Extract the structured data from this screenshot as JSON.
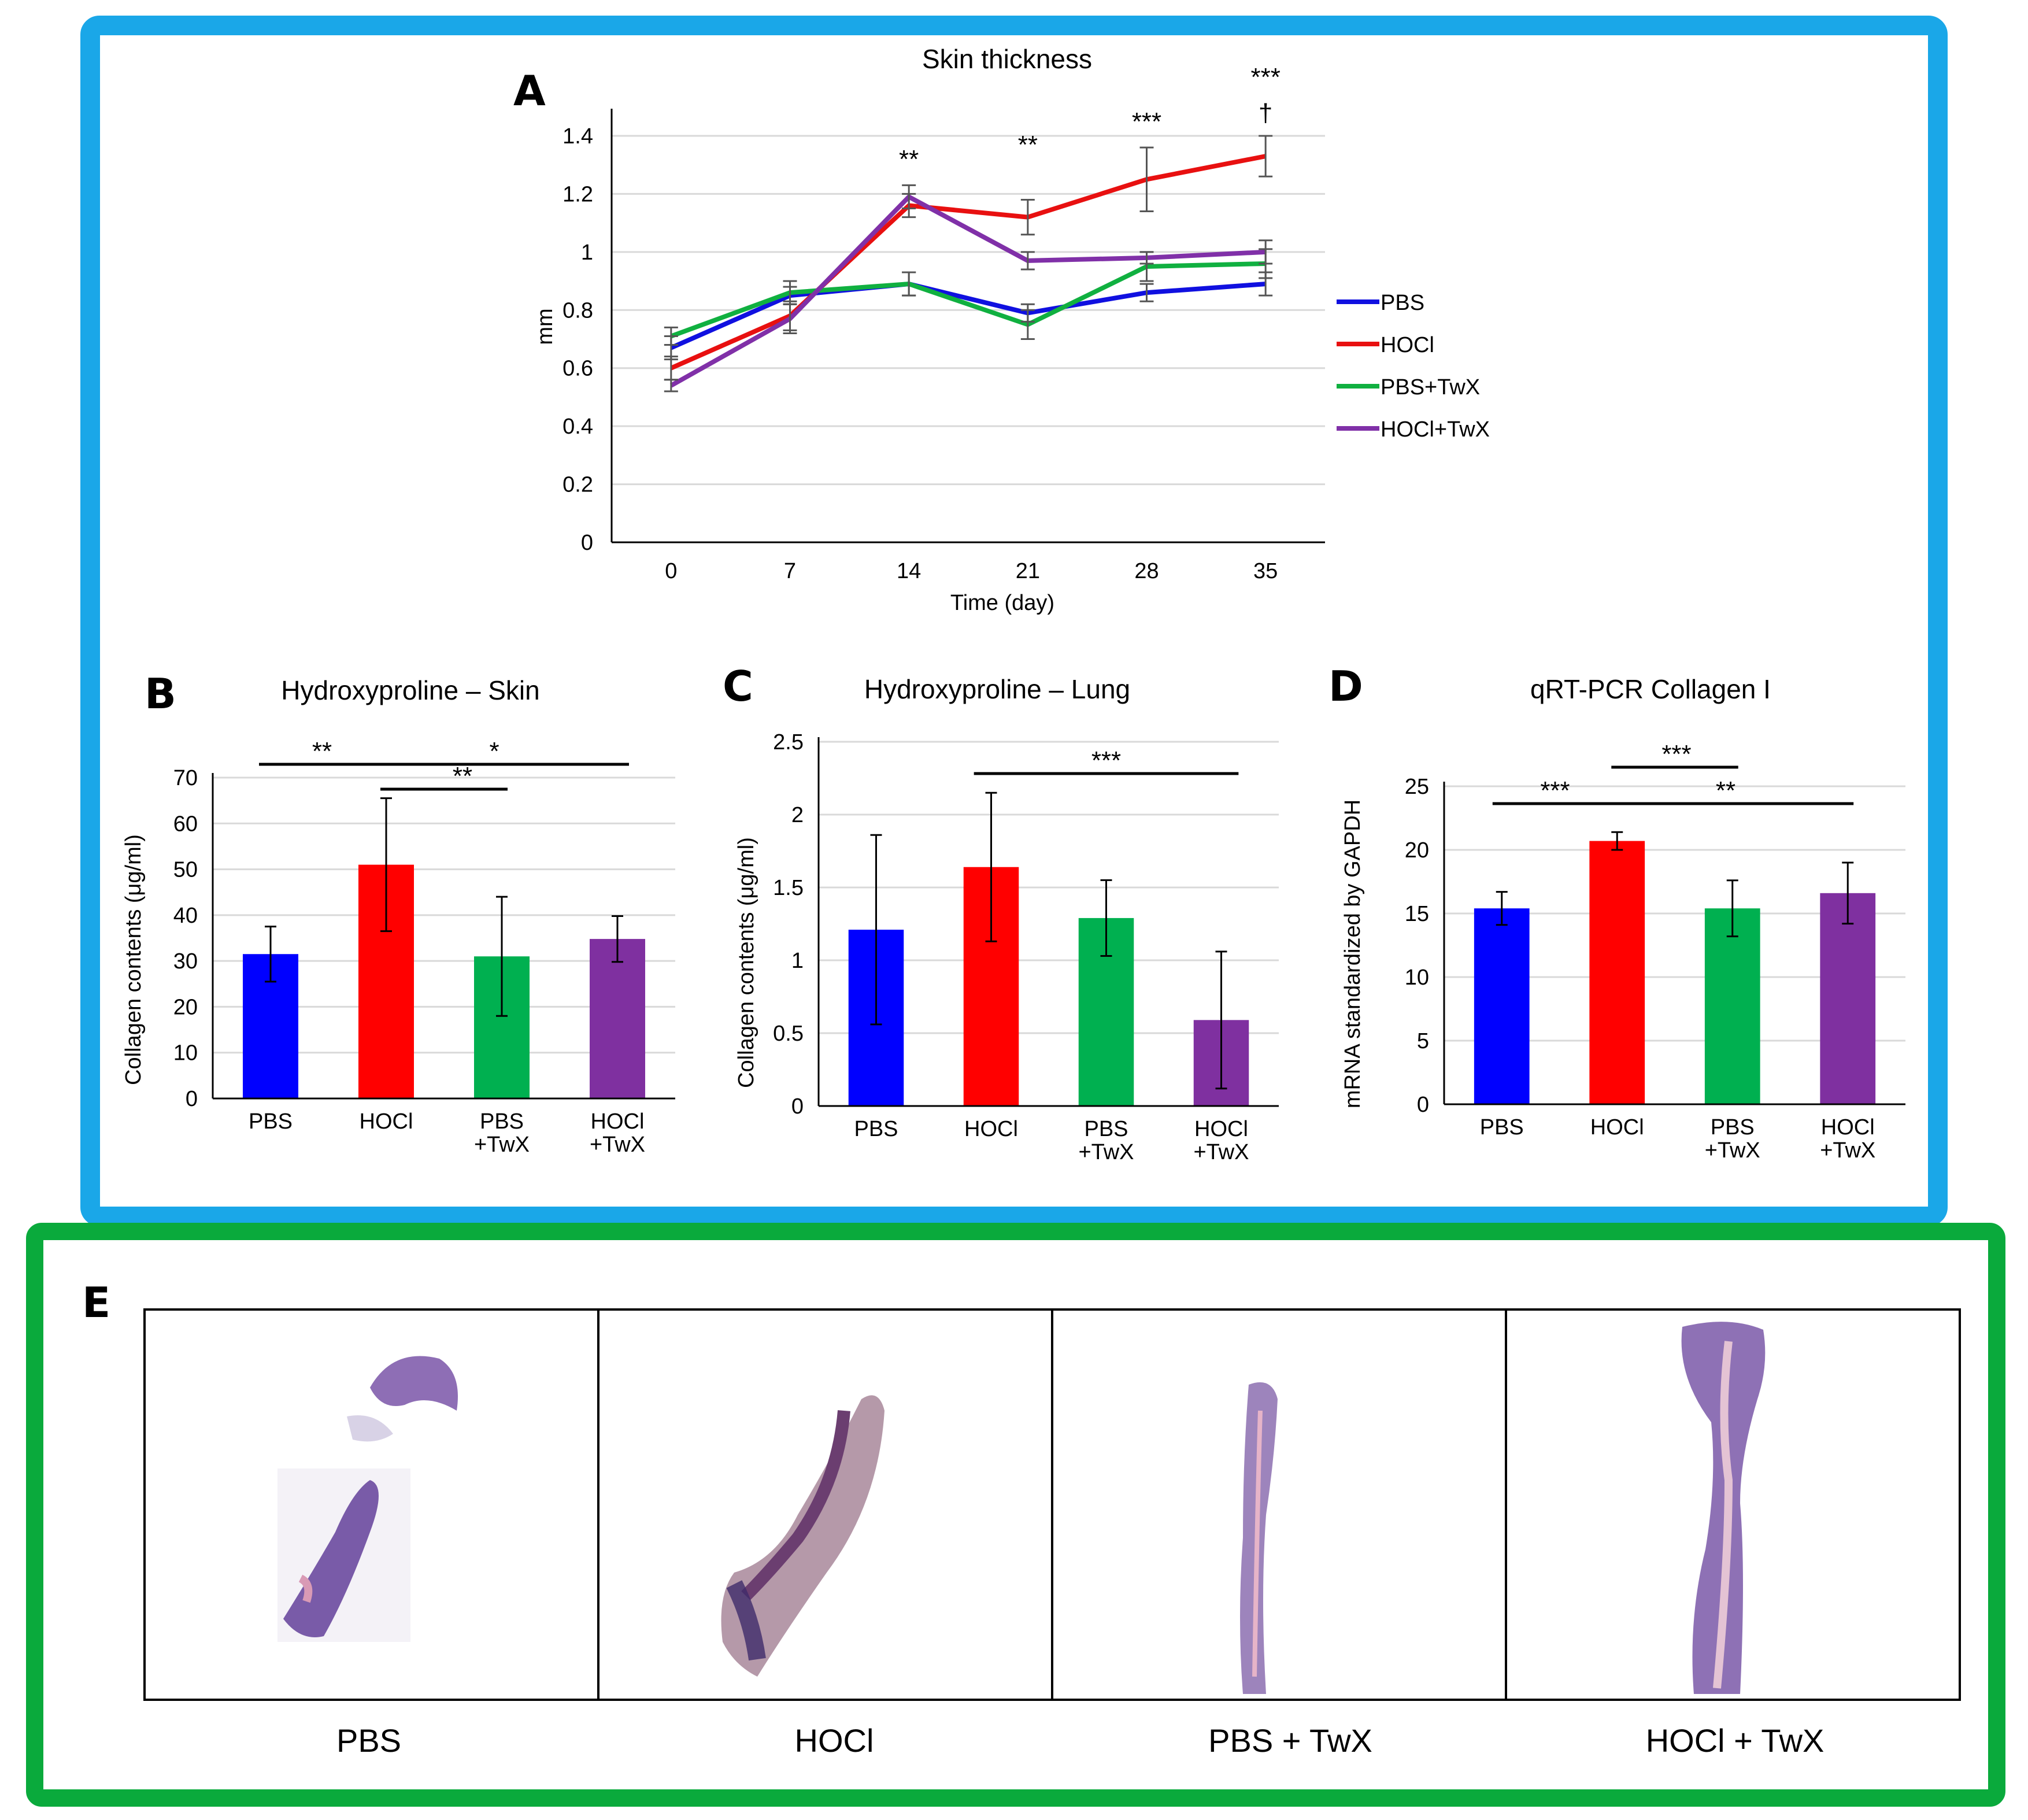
{
  "chart_data": [
    {
      "id": "A",
      "type": "line",
      "panel_label": "A",
      "title": "Skin thickness",
      "xlabel": "Time (day)",
      "ylabel": "mm",
      "x": [
        0,
        7,
        14,
        21,
        28,
        35
      ],
      "ylim": [
        0,
        1.4
      ],
      "yticks": [
        "0",
        "0.2",
        "0.4",
        "0.6",
        "0.8",
        "1",
        "1.2",
        "1.4"
      ],
      "xticks": [
        "0",
        "7",
        "14",
        "21",
        "28",
        "35"
      ],
      "series": [
        {
          "name": "PBS",
          "color": "#1010e0",
          "values": [
            0.67,
            0.85,
            0.89,
            0.79,
            0.86,
            0.89
          ],
          "errors": [
            0.04,
            0.03,
            0.04,
            0.03,
            0.03,
            0.04
          ]
        },
        {
          "name": "HOCl",
          "color": "#e81010",
          "values": [
            0.6,
            0.78,
            1.16,
            1.12,
            1.25,
            1.33
          ],
          "errors": [
            0.04,
            0.05,
            0.04,
            0.06,
            0.11,
            0.07
          ]
        },
        {
          "name": "PBS+TwX",
          "color": "#10b040",
          "values": [
            0.71,
            0.86,
            0.89,
            0.75,
            0.95,
            0.96
          ],
          "errors": [
            0.03,
            0.04,
            0.04,
            0.05,
            0.05,
            0.05
          ]
        },
        {
          "name": "HOCl+TwX",
          "color": "#8030a8",
          "values": [
            0.54,
            0.77,
            1.19,
            0.97,
            0.98,
            1.0
          ],
          "errors": [
            0.02,
            0.05,
            0.04,
            0.03,
            0.02,
            0.04
          ]
        }
      ],
      "legend_entries": [
        "PBS",
        "HOCl",
        "PBS+TwX",
        "HOCl+TwX"
      ],
      "annotations": [
        {
          "x": 14,
          "text": "**"
        },
        {
          "x": 21,
          "text": "**"
        },
        {
          "x": 28,
          "text": "***"
        },
        {
          "x": 35,
          "text": "***"
        },
        {
          "x": 35,
          "text": "†"
        }
      ]
    },
    {
      "id": "B",
      "type": "bar",
      "panel_label": "B",
      "title": "Hydroxyproline – Skin",
      "ylabel": "Collagen contents (μg/ml)",
      "categories": [
        "PBS",
        "HOCl",
        "PBS\n+TwX",
        "HOCl\n+TwX"
      ],
      "values": [
        31.5,
        51,
        31,
        34.8
      ],
      "errors": [
        6,
        14.5,
        13,
        5
      ],
      "colors": [
        "#0000ff",
        "#ff0000",
        "#00b050",
        "#7f30a0"
      ],
      "ylim": [
        0,
        70
      ],
      "yticks": [
        "0",
        "10",
        "20",
        "30",
        "40",
        "50",
        "60",
        "70"
      ],
      "significance": [
        {
          "from": 0,
          "to": 1,
          "text": "**"
        },
        {
          "from": 1,
          "to": 3,
          "text": "*"
        },
        {
          "from": 1,
          "to": 2,
          "text": "**"
        }
      ]
    },
    {
      "id": "C",
      "type": "bar",
      "panel_label": "C",
      "title": "Hydroxyproline – Lung",
      "ylabel": "Collagen contents (μg/ml)",
      "categories": [
        "PBS",
        "HOCl",
        "PBS\n+TwX",
        "HOCl\n+TwX"
      ],
      "values": [
        1.21,
        1.64,
        1.29,
        0.59
      ],
      "errors": [
        0.65,
        0.51,
        0.26,
        0.47
      ],
      "colors": [
        "#0000ff",
        "#ff0000",
        "#00b050",
        "#7f30a0"
      ],
      "ylim": [
        0,
        2.5
      ],
      "yticks": [
        "0",
        "0.5",
        "1",
        "1.5",
        "2",
        "2.5"
      ],
      "significance": [
        {
          "from": 1,
          "to": 3,
          "text": "***"
        }
      ]
    },
    {
      "id": "D",
      "type": "bar",
      "panel_label": "D",
      "title": "qRT-PCR Collagen I",
      "ylabel": "mRNA standardized by GAPDH",
      "categories": [
        "PBS",
        "HOCl",
        "PBS\n+TwX",
        "HOCl\n+TwX"
      ],
      "values": [
        15.4,
        20.7,
        15.4,
        16.6
      ],
      "errors": [
        1.3,
        0.7,
        2.2,
        2.4
      ],
      "colors": [
        "#0000ff",
        "#ff0000",
        "#00b050",
        "#7f30a0"
      ],
      "ylim": [
        0,
        25
      ],
      "yticks": [
        "0",
        "5",
        "10",
        "15",
        "20",
        "25"
      ],
      "significance": [
        {
          "from": 0,
          "to": 1,
          "text": "***"
        },
        {
          "from": 1,
          "to": 2,
          "text": "***"
        },
        {
          "from": 1,
          "to": 3,
          "text": "**"
        }
      ]
    }
  ],
  "panel_e": {
    "label": "E",
    "captions": [
      "PBS",
      "HOCl",
      "PBS + TwX",
      "HOCl + TwX"
    ],
    "tissue_color": "#6b4a9e"
  },
  "frames": {
    "top_color": "#1aa7e8",
    "bottom_color": "#0aaa3c"
  }
}
